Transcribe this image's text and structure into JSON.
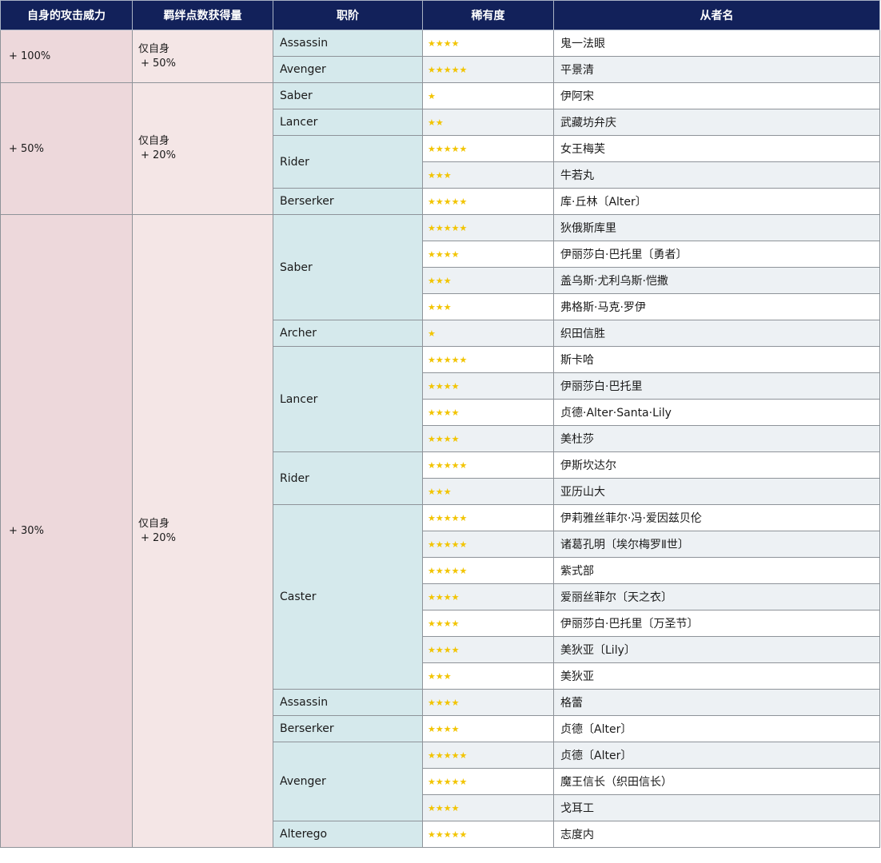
{
  "headers": {
    "attack": "自身的攻击威力",
    "bond": "羁绊点数获得量",
    "class": "职阶",
    "rarity": "稀有度",
    "name": "从者名"
  },
  "groups": [
    {
      "attack": "+ 100%",
      "bond_line1": "仅自身",
      "bond_line2": "+ 50%",
      "classes": [
        {
          "name": "Assassin",
          "servants": [
            {
              "rarity": "★★★★",
              "name": "鬼一法眼"
            }
          ]
        },
        {
          "name": "Avenger",
          "servants": [
            {
              "rarity": "★★★★★",
              "name": "平景清"
            }
          ]
        }
      ]
    },
    {
      "attack": "+ 50%",
      "bond_line1": "仅自身",
      "bond_line2": "+ 20%",
      "classes": [
        {
          "name": "Saber",
          "servants": [
            {
              "rarity": "★",
              "name": "伊阿宋"
            }
          ]
        },
        {
          "name": "Lancer",
          "servants": [
            {
              "rarity": "★★",
              "name": "武藏坊弁庆"
            }
          ]
        },
        {
          "name": "Rider",
          "servants": [
            {
              "rarity": "★★★★★",
              "name": "女王梅芙"
            },
            {
              "rarity": "★★★",
              "name": "牛若丸"
            }
          ]
        },
        {
          "name": "Berserker",
          "servants": [
            {
              "rarity": "★★★★★",
              "name": "库·丘林〔Alter〕"
            }
          ]
        }
      ]
    },
    {
      "attack": "+ 30%",
      "bond_line1": "仅自身",
      "bond_line2": "+ 20%",
      "classes": [
        {
          "name": "Saber",
          "servants": [
            {
              "rarity": "★★★★★",
              "name": "狄俄斯库里"
            },
            {
              "rarity": "★★★★",
              "name": "伊丽莎白·巴托里〔勇者〕"
            },
            {
              "rarity": "★★★",
              "name": "盖乌斯·尤利乌斯·恺撒"
            },
            {
              "rarity": "★★★",
              "name": "弗格斯·马克·罗伊"
            }
          ]
        },
        {
          "name": "Archer",
          "servants": [
            {
              "rarity": "★",
              "name": "织田信胜"
            }
          ]
        },
        {
          "name": "Lancer",
          "servants": [
            {
              "rarity": "★★★★★",
              "name": "斯卡哈"
            },
            {
              "rarity": "★★★★",
              "name": "伊丽莎白·巴托里"
            },
            {
              "rarity": "★★★★",
              "name": "贞德·Alter·Santa·Lily"
            },
            {
              "rarity": "★★★★",
              "name": "美杜莎"
            }
          ]
        },
        {
          "name": "Rider",
          "servants": [
            {
              "rarity": "★★★★★",
              "name": "伊斯坎达尔"
            },
            {
              "rarity": "★★★",
              "name": "亚历山大"
            }
          ]
        },
        {
          "name": "Caster",
          "servants": [
            {
              "rarity": "★★★★★",
              "name": "伊莉雅丝菲尔·冯·爱因兹贝伦"
            },
            {
              "rarity": "★★★★★",
              "name": "诸葛孔明〔埃尔梅罗Ⅱ世〕"
            },
            {
              "rarity": "★★★★★",
              "name": "紫式部"
            },
            {
              "rarity": "★★★★",
              "name": "爱丽丝菲尔〔天之衣〕"
            },
            {
              "rarity": "★★★★",
              "name": "伊丽莎白·巴托里〔万圣节〕"
            },
            {
              "rarity": "★★★★",
              "name": "美狄亚〔Lily〕"
            },
            {
              "rarity": "★★★",
              "name": "美狄亚"
            }
          ]
        },
        {
          "name": "Assassin",
          "servants": [
            {
              "rarity": "★★★★",
              "name": "格蕾"
            }
          ]
        },
        {
          "name": "Berserker",
          "servants": [
            {
              "rarity": "★★★★",
              "name": "贞德〔Alter〕"
            }
          ]
        },
        {
          "name": "Avenger",
          "servants": [
            {
              "rarity": "★★★★★",
              "name": "贞德〔Alter〕"
            },
            {
              "rarity": "★★★★★",
              "name": "魔王信长（织田信长）"
            },
            {
              "rarity": "★★★★",
              "name": "戈耳工"
            }
          ]
        },
        {
          "name": "Alterego",
          "servants": [
            {
              "rarity": "★★★★★",
              "name": "志度内"
            }
          ]
        }
      ]
    }
  ],
  "colors": {
    "header_bg": "#12215a",
    "attack_bg": "#edd8db",
    "bond_bg": "#f4e6e6",
    "class_bg": "#d5e9ec",
    "alt_row_bg": "#edf1f4",
    "star": "#f2c400"
  }
}
